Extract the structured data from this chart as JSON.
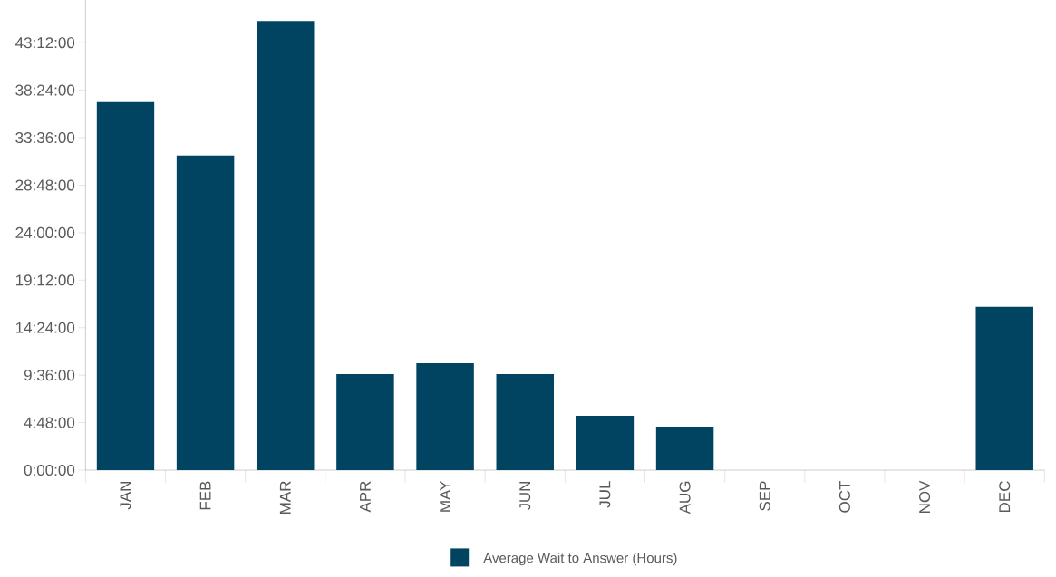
{
  "chart_data": {
    "type": "bar",
    "categories": [
      "JAN",
      "FEB",
      "MAR",
      "APR",
      "MAY",
      "JUN",
      "JUL",
      "AUG",
      "SEP",
      "OCT",
      "NOV",
      "DEC"
    ],
    "series": [
      {
        "name": "Average Wait to Answer (Hours)",
        "color": "#004462",
        "values": [
          37.2,
          31.8,
          45.4,
          9.7,
          10.8,
          9.7,
          5.5,
          4.4,
          0,
          0,
          0,
          16.5
        ]
      }
    ],
    "ylim": [
      0,
      47.7
    ],
    "yticks": [
      {
        "value": 0,
        "label": "0:00:00"
      },
      {
        "value": 4.8,
        "label": "4:48:00"
      },
      {
        "value": 9.6,
        "label": "9:36:00"
      },
      {
        "value": 14.4,
        "label": "14:24:00"
      },
      {
        "value": 19.2,
        "label": "19:12:00"
      },
      {
        "value": 24,
        "label": "24:00:00"
      },
      {
        "value": 28.8,
        "label": "28:48:00"
      },
      {
        "value": 33.6,
        "label": "33:36:00"
      },
      {
        "value": 38.4,
        "label": "38:24:00"
      },
      {
        "value": 43.2,
        "label": "43:12:00"
      }
    ],
    "grid": false,
    "legend": "bottom"
  }
}
